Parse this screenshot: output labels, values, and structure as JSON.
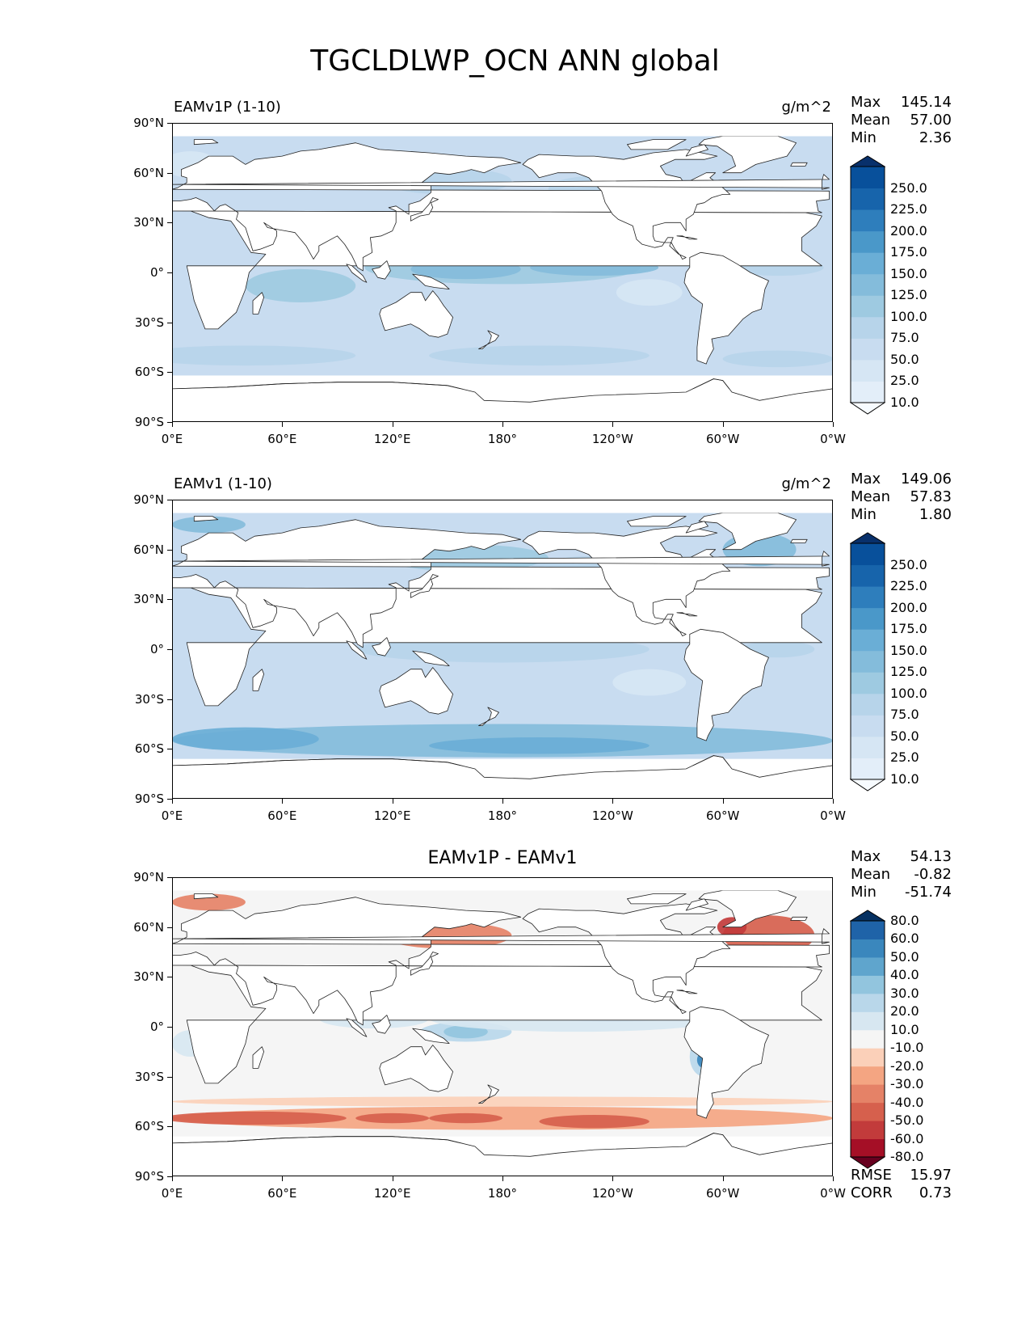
{
  "figure_title": "TGCLDLWP_OCN ANN global",
  "chart_data": [
    {
      "type": "heatmap",
      "title": "EAMv1P (1-10)",
      "units": "g/m^2",
      "stats": [
        {
          "label": "Max",
          "value": "145.14"
        },
        {
          "label": "Mean",
          "value": "57.00"
        },
        {
          "label": "Min",
          "value": "2.36"
        }
      ],
      "x_ticks": [
        "0°E",
        "60°E",
        "120°E",
        "180°",
        "120°W",
        "60°W",
        "0°W"
      ],
      "y_ticks": [
        "90°N",
        "60°N",
        "30°N",
        "0°",
        "30°S",
        "60°S",
        "90°S"
      ],
      "colorbar_levels": [
        "10.0",
        "25.0",
        "50.0",
        "75.0",
        "100.0",
        "125.0",
        "150.0",
        "175.0",
        "200.0",
        "225.0",
        "250.0"
      ],
      "colorbar_colors": [
        "#f7fbff",
        "#e3eef9",
        "#d6e6f4",
        "#c8dcf0",
        "#b7d4ea",
        "#9ecae1",
        "#84bcdb",
        "#6aaed6",
        "#4a98c9",
        "#2e7ebc",
        "#1764ab",
        "#08509b",
        "#08306b"
      ],
      "colorbar_extend": "both"
    },
    {
      "type": "heatmap",
      "title": "EAMv1 (1-10)",
      "units": "g/m^2",
      "stats": [
        {
          "label": "Max",
          "value": "149.06"
        },
        {
          "label": "Mean",
          "value": "57.83"
        },
        {
          "label": "Min",
          "value": "1.80"
        }
      ],
      "x_ticks": [
        "0°E",
        "60°E",
        "120°E",
        "180°",
        "120°W",
        "60°W",
        "0°W"
      ],
      "y_ticks": [
        "90°N",
        "60°N",
        "30°N",
        "0°",
        "30°S",
        "60°S",
        "90°S"
      ],
      "colorbar_levels": [
        "10.0",
        "25.0",
        "50.0",
        "75.0",
        "100.0",
        "125.0",
        "150.0",
        "175.0",
        "200.0",
        "225.0",
        "250.0"
      ],
      "colorbar_colors": [
        "#f7fbff",
        "#e3eef9",
        "#d6e6f4",
        "#c8dcf0",
        "#b7d4ea",
        "#9ecae1",
        "#84bcdb",
        "#6aaed6",
        "#4a98c9",
        "#2e7ebc",
        "#1764ab",
        "#08509b",
        "#08306b"
      ],
      "colorbar_extend": "both"
    },
    {
      "type": "heatmap",
      "title": "EAMv1P - EAMv1",
      "units": "",
      "stats": [
        {
          "label": "Max",
          "value": "54.13"
        },
        {
          "label": "Mean",
          "value": "-0.82"
        },
        {
          "label": "Min",
          "value": "-51.74"
        }
      ],
      "extra_stats": [
        {
          "label": "RMSE",
          "value": "15.97"
        },
        {
          "label": "CORR",
          "value": "0.73"
        }
      ],
      "x_ticks": [
        "0°E",
        "60°E",
        "120°E",
        "180°",
        "120°W",
        "60°W",
        "0°W"
      ],
      "y_ticks": [
        "90°N",
        "60°N",
        "30°N",
        "0°",
        "30°S",
        "60°S",
        "90°S"
      ],
      "colorbar_levels": [
        "-80.0",
        "-60.0",
        "-50.0",
        "-40.0",
        "-30.0",
        "-20.0",
        "-10.0",
        "10.0",
        "20.0",
        "30.0",
        "40.0",
        "50.0",
        "60.0",
        "80.0"
      ],
      "colorbar_colors": [
        "#67001f",
        "#a50f26",
        "#c23b3b",
        "#d6604d",
        "#e58267",
        "#f4a582",
        "#fbd0b9",
        "#f5f5f5",
        "#d7e7f1",
        "#b9d7ea",
        "#92c5de",
        "#5fa5cd",
        "#3a87bd",
        "#1f63a8",
        "#053061"
      ],
      "colorbar_extend": "both"
    }
  ]
}
